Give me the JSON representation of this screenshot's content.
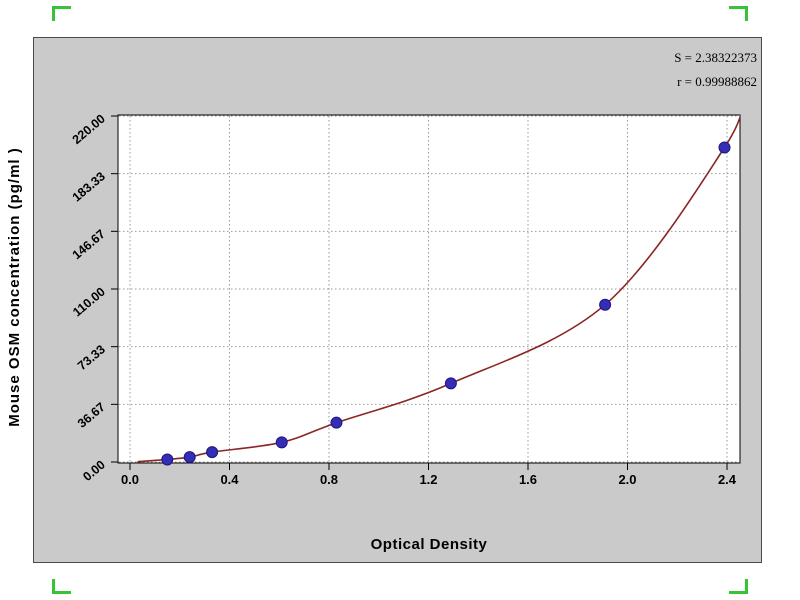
{
  "colors": {
    "panel_bg": "#cacaca",
    "panel_border": "#4a4a4a",
    "plot_bg": "#ffffff",
    "plot_border": "#000000",
    "grid": "#9a9a9a",
    "curve": "#8b2525",
    "point_fill": "#342db5",
    "point_edge": "#1c1680",
    "corner_mark": "#35c435",
    "text": "#000000"
  },
  "stats": {
    "s_label": "S = 2.38322373",
    "r_label": "r = 0.99988862"
  },
  "chart_data": {
    "type": "scatter",
    "title": "",
    "xlabel": "Optical Density",
    "ylabel": "Mouse OSM concentration (pg/ml )",
    "xlim": [
      0,
      2.4
    ],
    "ylim": [
      0,
      220
    ],
    "grid": true,
    "legend_position": "none",
    "x_ticks": [
      0,
      0.4,
      0.8,
      1.2,
      1.6,
      2.0,
      2.4
    ],
    "x_tick_labels": [
      "0.0",
      "0.4",
      "0.8",
      "1.2",
      "1.6",
      "2.0",
      "2.4"
    ],
    "y_ticks": [
      0,
      36.67,
      73.33,
      110,
      146.67,
      183.33,
      220
    ],
    "y_tick_labels": [
      "0.00",
      "36.67",
      "73.33",
      "110.00",
      "146.67",
      "183.33",
      "220.00"
    ],
    "series": [
      {
        "name": "standard-points",
        "type": "scatter",
        "x": [
          0.15,
          0.24,
          0.33,
          0.61,
          0.83,
          1.29,
          1.91,
          2.39
        ],
        "y": [
          1.6,
          3.1,
          6.3,
          12.5,
          25,
          50,
          100,
          200
        ]
      }
    ],
    "fit": {
      "name": "regression-curve",
      "S": "2.38322373",
      "r": "0.99988862"
    }
  }
}
